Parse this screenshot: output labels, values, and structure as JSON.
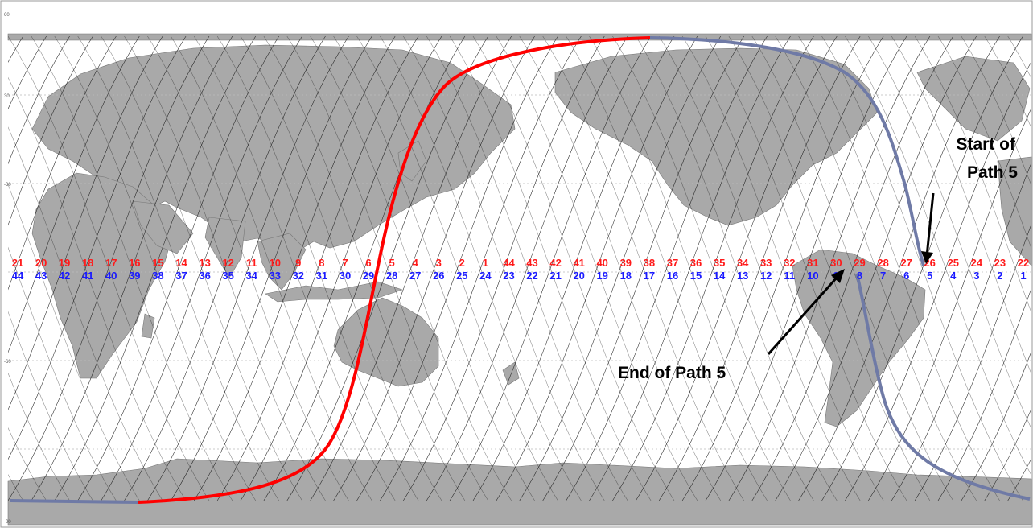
{
  "lat_ticks": [
    "60",
    "30",
    "-30",
    "-60",
    "-90"
  ],
  "paths_red": [
    "21",
    "20",
    "19",
    "18",
    "17",
    "16",
    "15",
    "14",
    "13",
    "12",
    "11",
    "10",
    "9",
    "8",
    "7",
    "6",
    "5",
    "4",
    "3",
    "2",
    "1",
    "44",
    "43",
    "42",
    "41",
    "40",
    "39",
    "38",
    "37",
    "36",
    "35",
    "34",
    "33",
    "32",
    "31",
    "30",
    "29",
    "28",
    "27",
    "26",
    "25",
    "24",
    "23",
    "22"
  ],
  "paths_blue": [
    "44",
    "43",
    "42",
    "41",
    "40",
    "39",
    "38",
    "37",
    "36",
    "35",
    "34",
    "33",
    "32",
    "31",
    "30",
    "29",
    "28",
    "27",
    "26",
    "25",
    "24",
    "23",
    "22",
    "21",
    "20",
    "19",
    "18",
    "17",
    "16",
    "15",
    "14",
    "13",
    "12",
    "11",
    "10",
    "9",
    "8",
    "7",
    "6",
    "5",
    "4",
    "3",
    "2",
    "1"
  ],
  "annotations": {
    "start_line1": "Start of",
    "start_line2": "Path 5",
    "end_label": "End of Path 5"
  },
  "colors": {
    "ocean": "#ffffff",
    "land": "#a9a9a9",
    "red_track": "#ff0000",
    "blue_track": "#6f7aa6",
    "red_numbers": "#ff1a1a",
    "blue_numbers": "#1a1aff"
  }
}
